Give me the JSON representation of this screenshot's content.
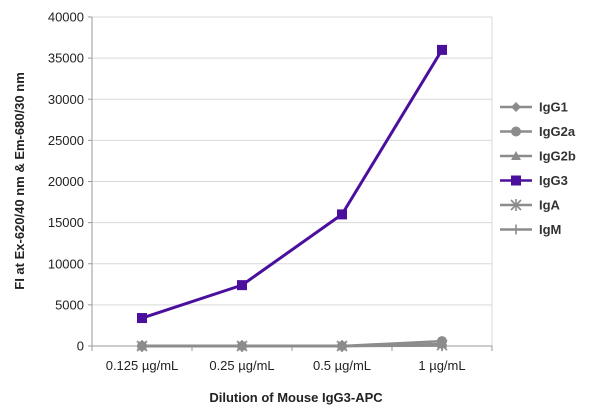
{
  "chart_data": {
    "type": "line",
    "title": "",
    "xlabel": "Dilution of Mouse IgG3-APC",
    "ylabel": "FI at Ex-620/40 nm & Em-680/30 nm",
    "categories": [
      "0.125 µg/mL",
      "0.25 µg/mL",
      "0.5 µg/mL",
      "1 µg/mL"
    ],
    "ylim": [
      0,
      40000
    ],
    "yticks": [
      0,
      5000,
      10000,
      15000,
      20000,
      25000,
      30000,
      35000,
      40000
    ],
    "grid": true,
    "legend_position": "right",
    "series": [
      {
        "name": "IgG1",
        "values": [
          0,
          0,
          0,
          150
        ],
        "color": "#8c8c8c",
        "marker": "diamond"
      },
      {
        "name": "IgG2a",
        "values": [
          0,
          0,
          0,
          600
        ],
        "color": "#8c8c8c",
        "marker": "circle"
      },
      {
        "name": "IgG2b",
        "values": [
          0,
          0,
          0,
          250
        ],
        "color": "#8c8c8c",
        "marker": "triangle"
      },
      {
        "name": "IgG3",
        "values": [
          3400,
          7400,
          16000,
          36000
        ],
        "color": "#4b0f9e",
        "marker": "square"
      },
      {
        "name": "IgA",
        "values": [
          0,
          0,
          0,
          100
        ],
        "color": "#8c8c8c",
        "marker": "star"
      },
      {
        "name": "IgM",
        "values": [
          0,
          0,
          0,
          50
        ],
        "color": "#8c8c8c",
        "marker": "plus"
      }
    ]
  }
}
